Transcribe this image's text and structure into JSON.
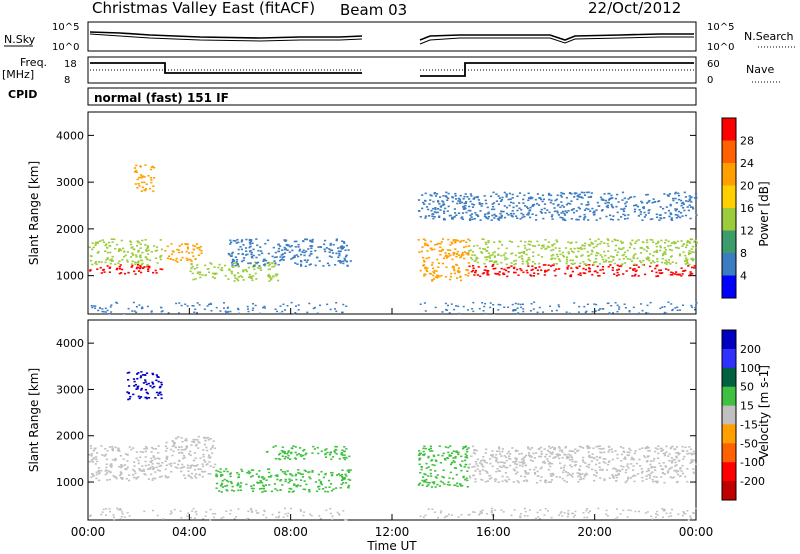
{
  "header": {
    "station": "Christmas Valley East (fitACF)",
    "beam": "Beam 03",
    "date": "22/Oct/2012"
  },
  "params": {
    "nsky_label": "N.Sky",
    "nsearch_label": "N.Search",
    "freq_label_1": "Freq.",
    "freq_label_2": "[MHz]",
    "nave_label": "Nave",
    "cpid_label": "CPID",
    "cpid_value": "normal (fast) 151 IF",
    "nsky_ticks": [
      "10^5",
      "10^0"
    ],
    "nsearch_ticks": [
      "10^5",
      "10^0"
    ],
    "freq_ticks": [
      "18",
      "8"
    ],
    "nave_ticks": [
      "60",
      "0"
    ]
  },
  "axes": {
    "xlabel": "Time UT",
    "x_ticks": [
      "00:00",
      "04:00",
      "08:00",
      "12:00",
      "16:00",
      "20:00",
      "00:00"
    ],
    "ylabel_power": "Slant Range [km]",
    "ylabel_velocity": "Slant Range [km]",
    "y_ticks": [
      "4000",
      "3000",
      "2000",
      "1000"
    ]
  },
  "colorbars": {
    "power": {
      "label": "Power [dB]",
      "ticks": [
        "28",
        "24",
        "20",
        "16",
        "12",
        "8",
        "4"
      ],
      "colors": [
        "#ff0000",
        "#ff6000",
        "#ffa000",
        "#ffd000",
        "#9ccc3c",
        "#3c9c6c",
        "#3c7cc0",
        "#0000ff"
      ]
    },
    "velocity": {
      "label": "Velocity [m s-1]",
      "ticks": [
        "200",
        "100",
        "50",
        "15",
        "-15",
        "-50",
        "-100",
        "-200"
      ],
      "colors": [
        "#0000c0",
        "#3030ff",
        "#006040",
        "#40c040",
        "#c0c0c0",
        "#ffa000",
        "#ff6000",
        "#ff0000",
        "#c00000"
      ]
    }
  },
  "chart_data": [
    {
      "type": "heatmap",
      "title": "Power",
      "xlabel": "Time UT",
      "ylabel": "Slant Range [km]",
      "xlim": [
        0,
        24
      ],
      "ylim": [
        180,
        4500
      ],
      "value_label": "Power [dB]",
      "value_range": [
        0,
        30
      ],
      "data_gap": [
        10.35,
        13.0
      ],
      "echo_bands": [
        {
          "t": [
            0.0,
            2.9
          ],
          "range": [
            1050,
            1250
          ],
          "value": 28
        },
        {
          "t": [
            0.0,
            2.9
          ],
          "range": [
            1250,
            1800
          ],
          "value": 14
        },
        {
          "t": [
            1.8,
            2.6
          ],
          "range": [
            2800,
            3400
          ],
          "value": 20
        },
        {
          "t": [
            3.0,
            4.5
          ],
          "range": [
            1300,
            1700
          ],
          "value": 22
        },
        {
          "t": [
            4.0,
            7.5
          ],
          "range": [
            900,
            1300
          ],
          "value": 12
        },
        {
          "t": [
            5.5,
            10.35
          ],
          "range": [
            1200,
            1800
          ],
          "value": 6
        },
        {
          "t": [
            13.0,
            15.0
          ],
          "range": [
            900,
            1800
          ],
          "value": 22
        },
        {
          "t": [
            15.0,
            24.0
          ],
          "range": [
            1000,
            1250
          ],
          "value": 28
        },
        {
          "t": [
            15.0,
            24.0
          ],
          "range": [
            1250,
            1800
          ],
          "value": 12
        },
        {
          "t": [
            13.0,
            24.0
          ],
          "range": [
            2200,
            2800
          ],
          "value": 6
        }
      ]
    },
    {
      "type": "heatmap",
      "title": "Velocity",
      "xlabel": "Time UT",
      "ylabel": "Slant Range [km]",
      "xlim": [
        0,
        24
      ],
      "ylim": [
        180,
        4500
      ],
      "value_label": "Velocity [m s-1]",
      "value_range": [
        -200,
        200
      ],
      "data_gap": [
        10.35,
        13.0
      ],
      "echo_bands": [
        {
          "t": [
            0.0,
            2.9
          ],
          "range": [
            1050,
            1800
          ],
          "value": 0
        },
        {
          "t": [
            1.5,
            2.9
          ],
          "range": [
            2800,
            3400
          ],
          "value": 200
        },
        {
          "t": [
            3.0,
            5.0
          ],
          "range": [
            1100,
            2000
          ],
          "value": 0
        },
        {
          "t": [
            5.0,
            10.35
          ],
          "range": [
            800,
            1300
          ],
          "value": 30
        },
        {
          "t": [
            7.0,
            10.35
          ],
          "range": [
            1500,
            1800
          ],
          "value": 30
        },
        {
          "t": [
            13.0,
            15.0
          ],
          "range": [
            900,
            1800
          ],
          "value": 30
        },
        {
          "t": [
            15.0,
            24.0
          ],
          "range": [
            1000,
            1800
          ],
          "value": 0
        }
      ]
    }
  ]
}
